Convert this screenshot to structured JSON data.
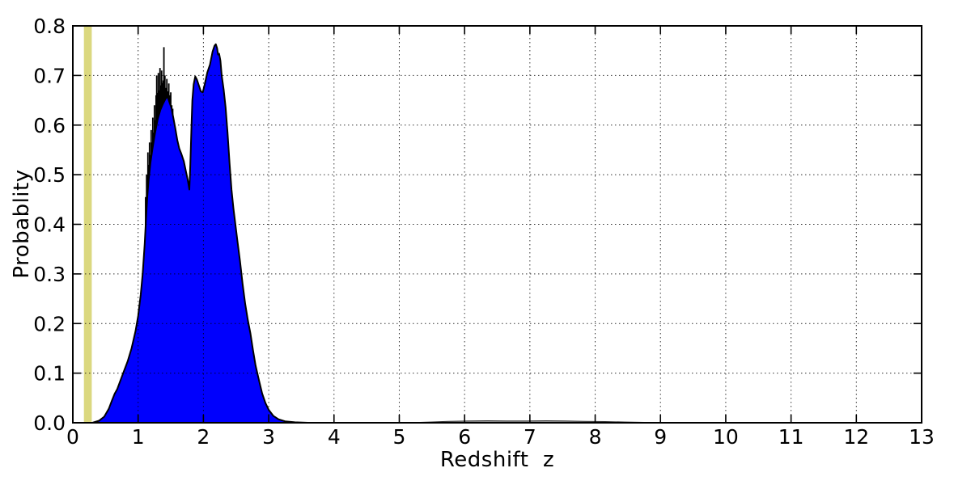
{
  "chart_data": {
    "type": "area",
    "title": "",
    "xlabel": "Redshift  z",
    "ylabel": "Probablity",
    "xlim": [
      0,
      13
    ],
    "ylim": [
      0.0,
      0.8
    ],
    "x_tick_labels": [
      "0",
      "1",
      "2",
      "3",
      "4",
      "5",
      "6",
      "7",
      "8",
      "9",
      "10",
      "11",
      "12",
      "13"
    ],
    "y_tick_labels": [
      "0.0",
      "0.1",
      "0.2",
      "0.3",
      "0.4",
      "0.5",
      "0.6",
      "0.7",
      "0.8"
    ],
    "grid": "dotted, black, on all major ticks, drawn over data",
    "legend": "none",
    "colors": {
      "pdf_fill": "#0000fd",
      "pdf_edge": "#000000",
      "histogram_spikes": "#000000",
      "highlight_band": "#dbd87f",
      "grid": "#000000",
      "axes": "#000000",
      "background": "#ffffff"
    },
    "highlight_band": {
      "z_min": 0.17,
      "z_max": 0.29,
      "note": "vertical khaki band spanning full plot height near z=0.23"
    },
    "series": [
      {
        "name": "smoothed-photoz-pdf",
        "type": "filled-area",
        "points": [
          [
            0.3,
            0.0
          ],
          [
            0.4,
            0.004
          ],
          [
            0.48,
            0.012
          ],
          [
            0.55,
            0.028
          ],
          [
            0.6,
            0.045
          ],
          [
            0.64,
            0.058
          ],
          [
            0.68,
            0.068
          ],
          [
            0.72,
            0.082
          ],
          [
            0.78,
            0.103
          ],
          [
            0.84,
            0.124
          ],
          [
            0.9,
            0.15
          ],
          [
            0.96,
            0.185
          ],
          [
            1.0,
            0.215
          ],
          [
            1.04,
            0.258
          ],
          [
            1.07,
            0.3
          ],
          [
            1.1,
            0.36
          ],
          [
            1.12,
            0.41
          ],
          [
            1.14,
            0.455
          ],
          [
            1.16,
            0.488
          ],
          [
            1.19,
            0.525
          ],
          [
            1.22,
            0.552
          ],
          [
            1.26,
            0.585
          ],
          [
            1.3,
            0.612
          ],
          [
            1.34,
            0.63
          ],
          [
            1.38,
            0.643
          ],
          [
            1.42,
            0.653
          ],
          [
            1.45,
            0.658
          ],
          [
            1.48,
            0.646
          ],
          [
            1.51,
            0.635
          ],
          [
            1.54,
            0.614
          ],
          [
            1.57,
            0.593
          ],
          [
            1.6,
            0.57
          ],
          [
            1.63,
            0.553
          ],
          [
            1.66,
            0.543
          ],
          [
            1.7,
            0.527
          ],
          [
            1.73,
            0.508
          ],
          [
            1.76,
            0.49
          ],
          [
            1.785,
            0.47
          ],
          [
            1.8,
            0.52
          ],
          [
            1.815,
            0.59
          ],
          [
            1.83,
            0.65
          ],
          [
            1.85,
            0.682
          ],
          [
            1.875,
            0.698
          ],
          [
            1.9,
            0.692
          ],
          [
            1.93,
            0.68
          ],
          [
            1.96,
            0.668
          ],
          [
            1.99,
            0.666
          ],
          [
            2.02,
            0.682
          ],
          [
            2.06,
            0.706
          ],
          [
            2.1,
            0.722
          ],
          [
            2.14,
            0.748
          ],
          [
            2.17,
            0.76
          ],
          [
            2.19,
            0.763
          ],
          [
            2.21,
            0.755
          ],
          [
            2.225,
            0.742
          ],
          [
            2.24,
            0.744
          ],
          [
            2.26,
            0.73
          ],
          [
            2.28,
            0.7
          ],
          [
            2.31,
            0.672
          ],
          [
            2.34,
            0.636
          ],
          [
            2.37,
            0.585
          ],
          [
            2.4,
            0.523
          ],
          [
            2.43,
            0.47
          ],
          [
            2.46,
            0.432
          ],
          [
            2.49,
            0.4
          ],
          [
            2.52,
            0.368
          ],
          [
            2.56,
            0.326
          ],
          [
            2.6,
            0.28
          ],
          [
            2.64,
            0.24
          ],
          [
            2.68,
            0.207
          ],
          [
            2.72,
            0.18
          ],
          [
            2.76,
            0.146
          ],
          [
            2.8,
            0.115
          ],
          [
            2.85,
            0.086
          ],
          [
            2.9,
            0.059
          ],
          [
            2.95,
            0.04
          ],
          [
            3.0,
            0.026
          ],
          [
            3.07,
            0.014
          ],
          [
            3.15,
            0.007
          ],
          [
            3.25,
            0.003
          ],
          [
            3.4,
            0.001
          ],
          [
            3.6,
            0.0
          ]
        ]
      },
      {
        "name": "raw-histogram-spikes",
        "type": "spikes",
        "note": "thin black vertical histogram spikes poking above the blue pdf on the first hump",
        "points": [
          [
            1.115,
            0.455
          ],
          [
            1.13,
            0.5
          ],
          [
            1.14,
            0.47
          ],
          [
            1.15,
            0.545
          ],
          [
            1.165,
            0.52
          ],
          [
            1.175,
            0.565
          ],
          [
            1.19,
            0.54
          ],
          [
            1.2,
            0.59
          ],
          [
            1.21,
            0.565
          ],
          [
            1.225,
            0.615
          ],
          [
            1.235,
            0.585
          ],
          [
            1.25,
            0.64
          ],
          [
            1.26,
            0.61
          ],
          [
            1.275,
            0.66
          ],
          [
            1.285,
            0.7
          ],
          [
            1.295,
            0.665
          ],
          [
            1.31,
            0.705
          ],
          [
            1.32,
            0.67
          ],
          [
            1.335,
            0.715
          ],
          [
            1.35,
            0.68
          ],
          [
            1.36,
            0.71
          ],
          [
            1.375,
            0.685
          ],
          [
            1.385,
            0.69
          ],
          [
            1.395,
            0.757
          ],
          [
            1.41,
            0.7
          ],
          [
            1.425,
            0.675
          ],
          [
            1.44,
            0.693
          ],
          [
            1.455,
            0.668
          ],
          [
            1.47,
            0.684
          ],
          [
            1.485,
            0.66
          ],
          [
            1.5,
            0.666
          ],
          [
            1.515,
            0.64
          ],
          [
            1.53,
            0.633
          ],
          [
            1.545,
            0.61
          ]
        ]
      },
      {
        "name": "high-z-tail-bump",
        "type": "filled-area",
        "note": "very shallow dark bump just above the axis between z≈5.2 and z≈9",
        "points": [
          [
            5.15,
            0.0
          ],
          [
            5.45,
            0.0015
          ],
          [
            5.75,
            0.003
          ],
          [
            6.05,
            0.0038
          ],
          [
            6.35,
            0.004
          ],
          [
            6.65,
            0.0036
          ],
          [
            6.95,
            0.0038
          ],
          [
            7.25,
            0.004
          ],
          [
            7.55,
            0.0036
          ],
          [
            7.85,
            0.003
          ],
          [
            8.15,
            0.0024
          ],
          [
            8.45,
            0.0016
          ],
          [
            8.75,
            0.0008
          ],
          [
            9.0,
            0.0
          ]
        ]
      }
    ]
  }
}
